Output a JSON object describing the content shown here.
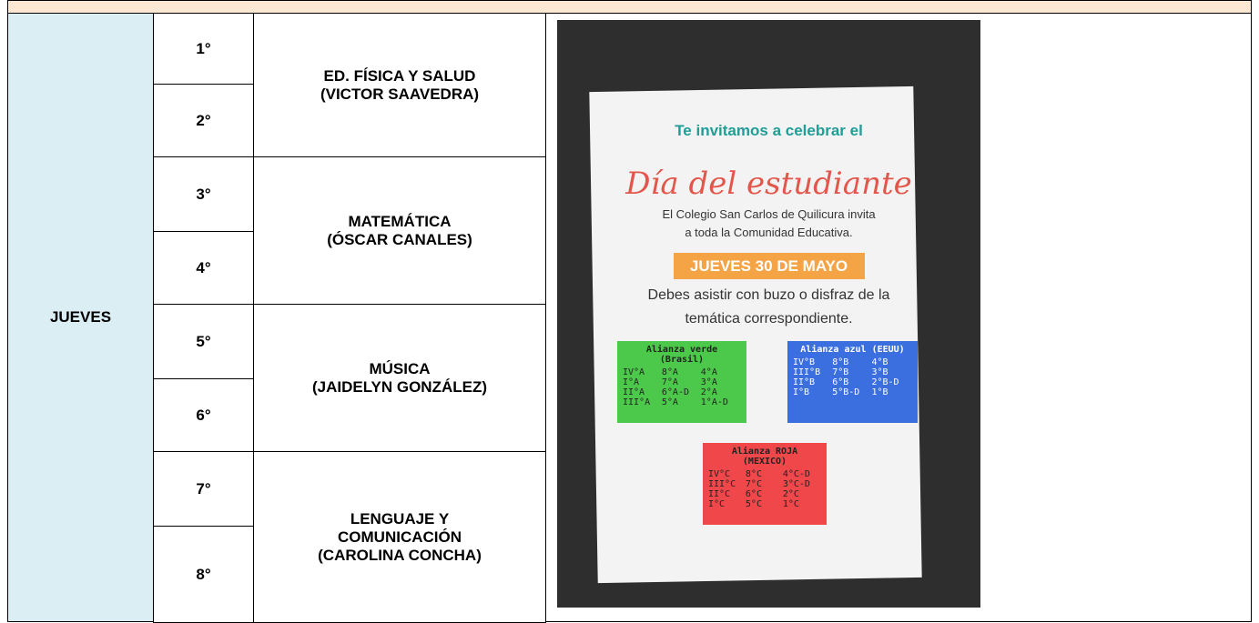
{
  "table": {
    "day": "JUEVES",
    "periods": [
      "1°",
      "2°",
      "3°",
      "4°",
      "5°",
      "6°",
      "7°",
      "8°"
    ],
    "subjects": [
      [
        "ED. FÍSICA Y SALUD",
        "(VICTOR SAAVEDRA)"
      ],
      [
        "MATEMÁTICA",
        "(ÓSCAR CANALES)"
      ],
      [
        "MÚSICA",
        "(JAIDELYN GONZÁLEZ)"
      ],
      [
        "LENGUAJE Y",
        "COMUNICACIÓN",
        "(CAROLINA CONCHA)"
      ]
    ]
  },
  "poster": {
    "invite": "Te invitamos a celebrar el",
    "title": "Día del estudiante",
    "text1": "El Colegio San Carlos de Quilicura invita",
    "text2": "a toda la Comunidad Educativa.",
    "date": "JUEVES 30 DE MAYO",
    "text3": "Debes asistir con buzo o disfraz de la",
    "text4": "temática correspondiente.",
    "alliances": [
      {
        "name": "Alianza verde (Brasil)",
        "color": "#4cc94a",
        "rows": [
          [
            "IV°A",
            "8°A",
            "4°A"
          ],
          [
            "I°A",
            "7°A",
            "3°A"
          ],
          [
            "II°A",
            "6°A-D",
            "2°A"
          ],
          [
            "III°A",
            "5°A",
            "1°A-D"
          ]
        ]
      },
      {
        "name": "Alianza azul (EEUU)",
        "color": "#3b6fe0",
        "rows": [
          [
            "IV°B",
            "8°B",
            "4°B"
          ],
          [
            "III°B",
            "7°B",
            "3°B"
          ],
          [
            "II°B",
            "6°B",
            "2°B-D"
          ],
          [
            "I°B",
            "5°B-D",
            "1°B"
          ]
        ]
      },
      {
        "name": "Alianza ROJA (MEXICO)",
        "color": "#f0474a",
        "rows": [
          [
            "IV°C",
            "8°C",
            "4°C-D"
          ],
          [
            "III°C",
            "7°C",
            "3°C-D"
          ],
          [
            "II°C",
            "6°C",
            "2°C"
          ],
          [
            "I°C",
            "5°C",
            "1°C"
          ]
        ]
      }
    ]
  }
}
